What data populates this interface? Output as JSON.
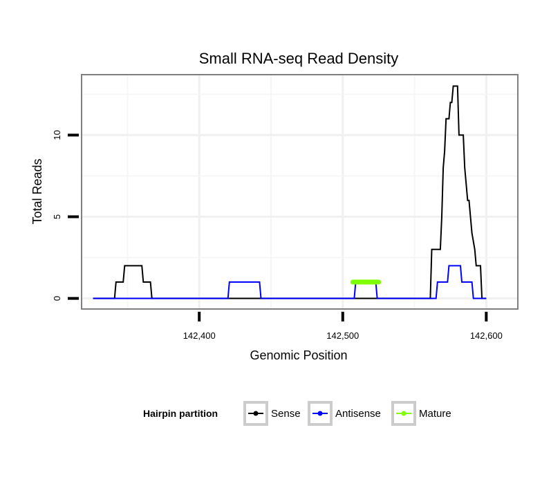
{
  "chart_data": {
    "type": "line",
    "title": "Small RNA-seq Read Density",
    "xlabel": "Genomic Position",
    "ylabel": "Total Reads",
    "xlim": [
      142318,
      142622
    ],
    "ylim": [
      -0.65,
      13.7
    ],
    "x_ticks": [
      142400,
      142500,
      142600
    ],
    "x_tick_labels": [
      "142,400",
      "142,500",
      "142,600"
    ],
    "y_ticks": [
      0,
      5,
      10
    ],
    "y_tick_labels": [
      "0",
      "5",
      "10"
    ],
    "grid": true,
    "legend_position": "bottom",
    "legend_title": "Hairpin partition",
    "series": [
      {
        "name": "Sense",
        "color": "#000000",
        "points": [
          [
            142326,
            0
          ],
          [
            142341,
            0
          ],
          [
            142342,
            1
          ],
          [
            142347,
            1
          ],
          [
            142348,
            2
          ],
          [
            142360,
            2
          ],
          [
            142361,
            1
          ],
          [
            142366,
            1
          ],
          [
            142367,
            0
          ],
          [
            142561,
            0
          ],
          [
            142562,
            3
          ],
          [
            142568,
            3
          ],
          [
            142569,
            5
          ],
          [
            142570,
            8
          ],
          [
            142571,
            9
          ],
          [
            142572,
            11
          ],
          [
            142574,
            11
          ],
          [
            142575,
            12
          ],
          [
            142576,
            12
          ],
          [
            142577,
            13
          ],
          [
            142580,
            13
          ],
          [
            142581,
            10
          ],
          [
            142584,
            10
          ],
          [
            142585,
            8
          ],
          [
            142586,
            7
          ],
          [
            142587,
            6
          ],
          [
            142588,
            6
          ],
          [
            142589,
            5
          ],
          [
            142590,
            4
          ],
          [
            142592,
            3
          ],
          [
            142593,
            2
          ],
          [
            142596,
            2
          ],
          [
            142597,
            0
          ],
          [
            142600,
            0
          ]
        ]
      },
      {
        "name": "Antisense",
        "color": "#0000ff",
        "points": [
          [
            142326,
            0
          ],
          [
            142420,
            0
          ],
          [
            142421,
            1
          ],
          [
            142442,
            1
          ],
          [
            142443,
            0
          ],
          [
            142508,
            0
          ],
          [
            142509,
            1
          ],
          [
            142523,
            1
          ],
          [
            142524,
            0
          ],
          [
            142565,
            0
          ],
          [
            142566,
            1
          ],
          [
            142573,
            1
          ],
          [
            142574,
            2
          ],
          [
            142582,
            2
          ],
          [
            142583,
            1
          ],
          [
            142590,
            1
          ],
          [
            142591,
            0
          ],
          [
            142600,
            0
          ]
        ]
      },
      {
        "name": "Mature",
        "color": "#7fff00",
        "points": [
          [
            142507,
            1
          ],
          [
            142525,
            1
          ]
        ]
      }
    ]
  }
}
